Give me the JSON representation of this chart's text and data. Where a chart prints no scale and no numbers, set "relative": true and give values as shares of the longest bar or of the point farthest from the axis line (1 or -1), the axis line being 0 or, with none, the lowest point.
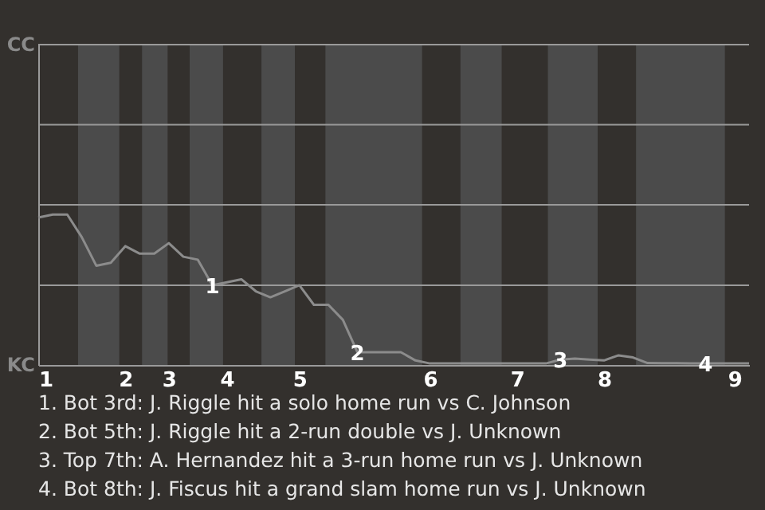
{
  "chart_data": {
    "type": "line",
    "categories": [
      "1",
      null,
      null,
      null,
      null,
      null,
      "2",
      null,
      null,
      "3",
      null,
      null,
      null,
      "4",
      null,
      null,
      null,
      null,
      "5",
      null,
      null,
      null,
      null,
      null,
      null,
      null,
      null,
      "6",
      null,
      null,
      null,
      null,
      null,
      "7",
      null,
      null,
      null,
      null,
      null,
      "8",
      null,
      null,
      null,
      null,
      null,
      null,
      null,
      null,
      "9",
      null
    ],
    "relative": true,
    "series": [
      {
        "color": "#8c8c8c",
        "values": [
          0.98,
          1,
          1,
          0.85,
          0.66,
          0.68,
          0.79,
          0.74,
          0.74,
          0.81,
          0.72,
          0.7,
          0.53,
          0.55,
          0.57,
          0.49,
          0.45,
          0.49,
          0.53,
          0.4,
          0.4,
          0.3,
          0.085,
          0.085,
          0.085,
          0.085,
          0.03,
          0.01,
          0.01,
          0.01,
          0.01,
          0.01,
          0.01,
          0.01,
          0.01,
          0.01,
          0.036,
          0.043,
          0.036,
          0.03,
          0.064,
          0.05,
          0.013,
          0.012,
          0.012,
          0.011,
          0.01,
          0.01,
          0.01,
          0.01
        ]
      }
    ],
    "line_style": "solid",
    "ref_lines": [
      {
        "axis": "y",
        "value": 0.53,
        "color": "#9a9a9a"
      }
    ],
    "annotations": [
      {
        "text": "1",
        "y": 0.53
      },
      {
        "text": "2",
        "y": 0.085
      },
      {
        "text": "3",
        "y": 0.036
      },
      {
        "text": "4",
        "y": 0.01
      },
      "CC",
      "KC",
      "1. Bot 3rd: J. Riggle hit a solo home run vs C. Johnson",
      "2. Bot 5th: J. Riggle hit a 2-run double vs J. Unknown",
      "3. Top 7th: A. Hernandez hit a 3-run home run vs J. Unknown",
      "4. Bot 8th: J. Fiscus hit a grand slam home run vs J. Unknown"
    ]
  }
}
